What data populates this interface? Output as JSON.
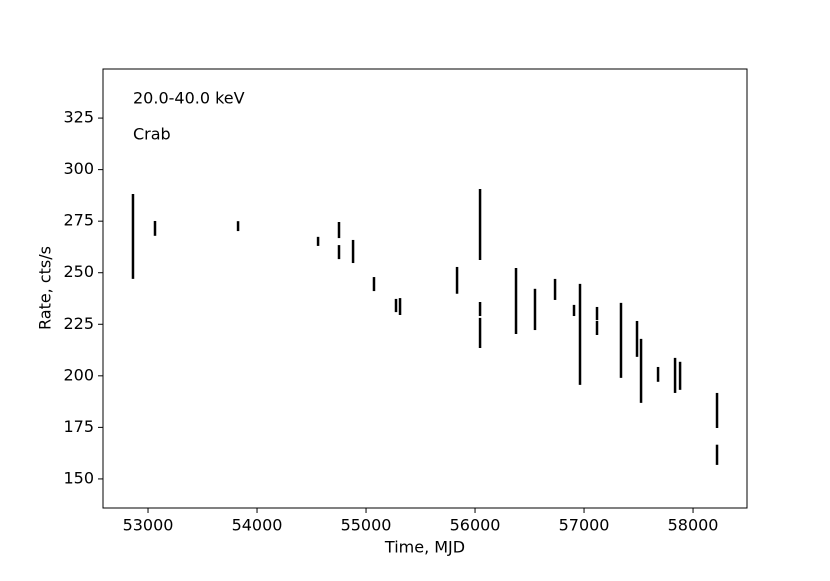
{
  "chart_data": {
    "type": "errorbar",
    "xlabel": "Time, MJD",
    "ylabel": "Rate, cts/s",
    "annotations": [
      "20.0-40.0 keV",
      "Crab"
    ],
    "color": "#000000",
    "x": [
      52862,
      53064,
      53826,
      54560,
      54752,
      54752,
      54881,
      55073,
      55275,
      55312,
      55835,
      56046,
      56046,
      56046,
      56376,
      56550,
      56734,
      56908,
      56963,
      57119,
      57119,
      57339,
      57486,
      57523,
      57679,
      57835,
      57881,
      58220,
      58220
    ],
    "values": [
      267.6,
      271.5,
      272.6,
      265.2,
      270.7,
      260.0,
      260.3,
      244.5,
      234.1,
      233.6,
      246.3,
      273.4,
      232.4,
      220.8,
      236.3,
      232.2,
      241.9,
      231.7,
      220.1,
      230.2,
      223.2,
      217.2,
      217.9,
      202.4,
      200.7,
      200.2,
      200.0,
      183.2,
      161.7
    ],
    "errors": [
      20.6,
      3.6,
      2.4,
      2.2,
      3.9,
      3.4,
      5.6,
      3.4,
      3.2,
      4.1,
      6.5,
      17.2,
      3.4,
      7.3,
      16.0,
      10.0,
      5.1,
      2.7,
      24.5,
      3.2,
      3.4,
      18.2,
      8.7,
      15.5,
      3.6,
      8.5,
      6.8,
      8.5,
      4.9
    ],
    "xlim": [
      52587,
      58495
    ],
    "ylim": [
      135.9,
      348.8
    ],
    "xticks": [
      53000,
      54000,
      55000,
      56000,
      57000,
      58000
    ],
    "yticks": [
      150,
      175,
      200,
      225,
      250,
      275,
      300,
      325
    ],
    "grid": false
  }
}
